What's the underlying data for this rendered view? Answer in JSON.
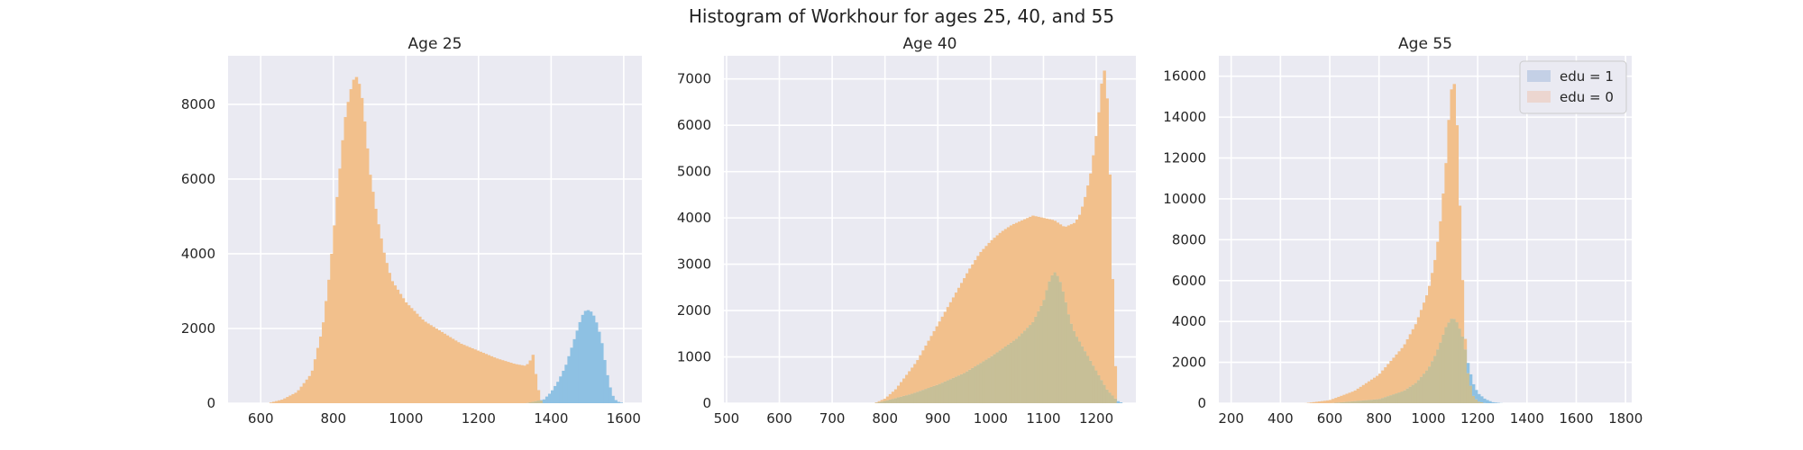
{
  "figure": {
    "title": "Histogram of Workhour for ages 25, 40, and 55"
  },
  "colors": {
    "background": "#eaeaf2",
    "grid": "#ffffff",
    "edu1": "#8ec1e3",
    "edu0": "#f2c08c",
    "overlap": "#c7bf97"
  },
  "chart_data": [
    {
      "type": "area",
      "title": "Age 25",
      "xlabel": "",
      "ylabel": "",
      "xlim": [
        510,
        1650
      ],
      "ylim": [
        0,
        9300
      ],
      "xticks": [
        600,
        800,
        1000,
        1200,
        1400,
        1600
      ],
      "yticks": [
        0,
        2000,
        4000,
        6000,
        8000
      ],
      "grid": true,
      "series": [
        {
          "key": "edu0",
          "x": [
            620,
            660,
            700,
            740,
            770,
            790,
            810,
            830,
            845,
            860,
            870,
            880,
            890,
            900,
            920,
            940,
            960,
            980,
            1000,
            1050,
            1100,
            1150,
            1200,
            1250,
            1300,
            1330,
            1340,
            1350,
            1360,
            1370,
            1380
          ],
          "y": [
            0,
            100,
            300,
            800,
            2000,
            3500,
            5500,
            7500,
            8300,
            8800,
            8600,
            8100,
            7200,
            6200,
            5000,
            4000,
            3300,
            3000,
            2700,
            2200,
            1900,
            1600,
            1400,
            1200,
            1050,
            1000,
            1100,
            1300,
            600,
            100,
            0
          ]
        },
        {
          "key": "edu1",
          "x": [
            1330,
            1380,
            1400,
            1420,
            1440,
            1460,
            1480,
            1490,
            1500,
            1510,
            1520,
            1530,
            1540,
            1550,
            1560,
            1570,
            1580,
            1600
          ],
          "y": [
            0,
            100,
            300,
            600,
            1000,
            1600,
            2200,
            2450,
            2500,
            2450,
            2300,
            2000,
            1600,
            1000,
            500,
            200,
            50,
            0
          ]
        }
      ]
    },
    {
      "type": "area",
      "title": "Age 40",
      "xlabel": "",
      "ylabel": "",
      "xlim": [
        495,
        1275
      ],
      "ylim": [
        0,
        7500
      ],
      "xticks": [
        500,
        600,
        700,
        800,
        900,
        1000,
        1100,
        1200
      ],
      "yticks": [
        0,
        1000,
        2000,
        3000,
        4000,
        5000,
        6000,
        7000
      ],
      "grid": true,
      "series": [
        {
          "key": "edu0",
          "x": [
            780,
            800,
            820,
            840,
            860,
            880,
            900,
            920,
            940,
            960,
            980,
            1000,
            1020,
            1040,
            1060,
            1080,
            1100,
            1120,
            1140,
            1160,
            1170,
            1180,
            1190,
            1200,
            1205,
            1210,
            1215,
            1220,
            1225,
            1230,
            1235,
            1240
          ],
          "y": [
            0,
            100,
            300,
            600,
            900,
            1300,
            1700,
            2100,
            2500,
            2900,
            3250,
            3500,
            3700,
            3850,
            3950,
            4050,
            4000,
            3950,
            3800,
            3900,
            4100,
            4500,
            5000,
            5800,
            6300,
            6900,
            7200,
            6700,
            5200,
            3000,
            1000,
            0
          ]
        },
        {
          "key": "edu1",
          "x": [
            780,
            800,
            850,
            900,
            950,
            1000,
            1050,
            1080,
            1100,
            1110,
            1120,
            1130,
            1140,
            1150,
            1160,
            1170,
            1180,
            1200,
            1220,
            1240,
            1250
          ],
          "y": [
            0,
            50,
            200,
            400,
            650,
            1000,
            1400,
            1750,
            2200,
            2600,
            2850,
            2700,
            2300,
            1800,
            1500,
            1300,
            1100,
            700,
            300,
            50,
            0
          ]
        }
      ]
    },
    {
      "type": "area",
      "title": "Age 55",
      "xlabel": "",
      "ylabel": "",
      "xlim": [
        150,
        1825
      ],
      "ylim": [
        0,
        17000
      ],
      "xticks": [
        200,
        400,
        600,
        800,
        1000,
        1200,
        1400,
        1600,
        1800
      ],
      "yticks": [
        0,
        2000,
        4000,
        6000,
        8000,
        10000,
        12000,
        14000,
        16000
      ],
      "grid": true,
      "legend": {
        "placement": "upper right",
        "entries": [
          "edu = 1",
          "edu = 0"
        ]
      },
      "series": [
        {
          "key": "edu0",
          "x": [
            500,
            600,
            700,
            800,
            900,
            950,
            1000,
            1030,
            1050,
            1070,
            1080,
            1090,
            1100,
            1110,
            1120,
            1130,
            1140,
            1150,
            1160,
            1180,
            1200,
            1230
          ],
          "y": [
            0,
            150,
            600,
            1400,
            2800,
            3900,
            5500,
            7200,
            9000,
            11500,
            13500,
            15000,
            16000,
            15200,
            12500,
            8500,
            5500,
            3000,
            1500,
            400,
            100,
            0
          ]
        },
        {
          "key": "edu1",
          "x": [
            600,
            800,
            900,
            950,
            1000,
            1030,
            1050,
            1070,
            1090,
            1100,
            1110,
            1120,
            1140,
            1160,
            1180,
            1200,
            1230,
            1260,
            1300
          ],
          "y": [
            0,
            200,
            600,
            1000,
            1700,
            2400,
            3000,
            3700,
            4100,
            4200,
            4050,
            3900,
            3200,
            2000,
            1000,
            500,
            200,
            50,
            0
          ]
        }
      ]
    }
  ]
}
